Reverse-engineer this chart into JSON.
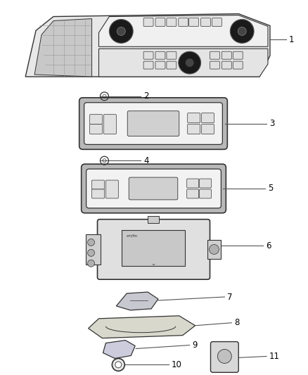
{
  "background_color": "#ffffff",
  "line_color": "#555555",
  "part_color": "#333333",
  "callout_font_size": 8.5,
  "parts": [
    {
      "id": 1,
      "label": "1"
    },
    {
      "id": 2,
      "label": "2"
    },
    {
      "id": 3,
      "label": "3"
    },
    {
      "id": 4,
      "label": "4"
    },
    {
      "id": 5,
      "label": "5"
    },
    {
      "id": 6,
      "label": "6"
    },
    {
      "id": 7,
      "label": "7"
    },
    {
      "id": 8,
      "label": "8"
    },
    {
      "id": 9,
      "label": "9"
    },
    {
      "id": 10,
      "label": "10"
    },
    {
      "id": 11,
      "label": "11"
    }
  ]
}
